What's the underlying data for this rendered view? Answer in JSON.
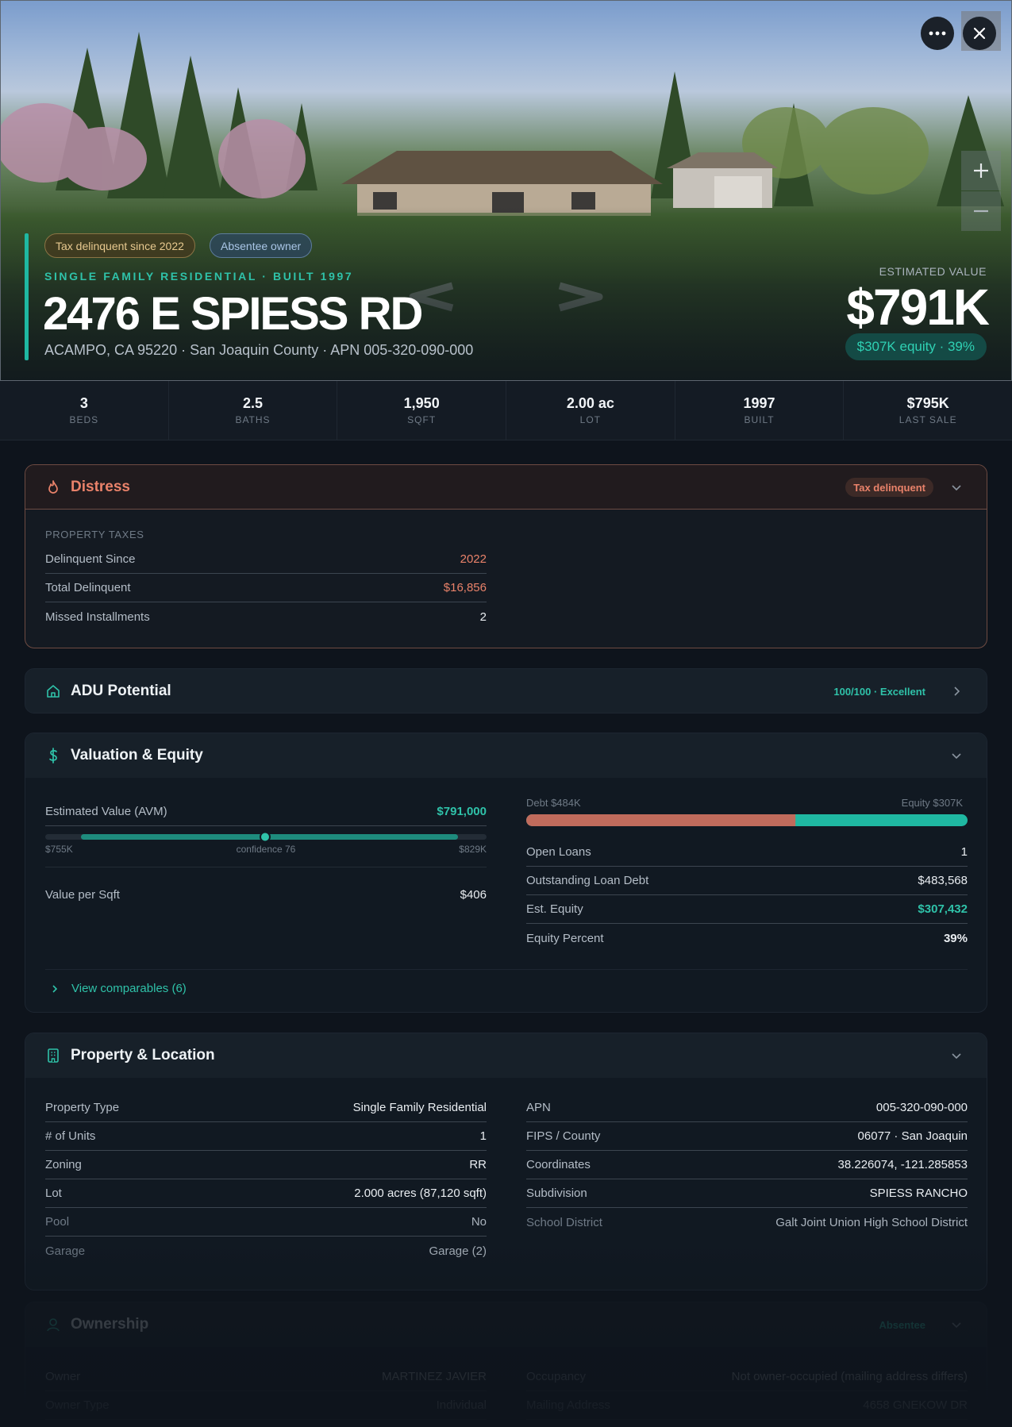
{
  "hero": {
    "chips": {
      "tax": "Tax delinquent since 2022",
      "absentee": "Absentee owner"
    },
    "eyebrow": "SINGLE FAMILY RESIDENTIAL · BUILT 1997",
    "address": "2476 E SPIESS RD",
    "subaddress": "ACAMPO, CA 95220 · San Joaquin County · APN 005-320-090-000",
    "estimated_label": "ESTIMATED VALUE",
    "estimated_value": "$791K",
    "equity_pill": "$307K equity · 39%"
  },
  "controls": {
    "more_icon": "more-horizontal-icon",
    "close_icon": "close-icon",
    "zoom_in_icon": "plus-icon",
    "zoom_out_icon": "minus-icon"
  },
  "stats": [
    {
      "value": "3",
      "label": "BEDS"
    },
    {
      "value": "2.5",
      "label": "BATHS"
    },
    {
      "value": "1,950",
      "label": "SQFT"
    },
    {
      "value": "2.00 ac",
      "label": "LOT"
    },
    {
      "value": "1997",
      "label": "BUILT"
    },
    {
      "value": "$795K",
      "label": "LAST SALE"
    }
  ],
  "distress": {
    "title": "Distress",
    "badge": "Tax delinquent",
    "section": "PROPERTY TAXES",
    "rows": [
      {
        "k": "Delinquent Since",
        "v": "2022"
      },
      {
        "k": "Total Delinquent",
        "v": "$16,856"
      },
      {
        "k": "Missed Installments",
        "v": "2"
      }
    ],
    "colors": {
      "accent": "#e9826a"
    }
  },
  "adu": {
    "title": "ADU Potential",
    "score": "100/100 · Excellent"
  },
  "valuation": {
    "title": "Valuation & Equity",
    "avm_label": "Estimated Value (AVM)",
    "avm_value": "$791,000",
    "range_low": "$755K",
    "confidence": "confidence 76",
    "range_high": "$829K",
    "value_per_sqft_label": "Value per Sqft",
    "value_per_sqft": "$406",
    "debt_label": "Debt $484K",
    "equity_label": "Equity $307K",
    "debt_fraction": 0.61,
    "rows": [
      {
        "k": "Open Loans",
        "v": "1"
      },
      {
        "k": "Outstanding Loan Debt",
        "v": "$483,568"
      },
      {
        "k": "Est. Equity",
        "v": "$307,432"
      },
      {
        "k": "Equity Percent",
        "v": "39%"
      }
    ],
    "comparables_link": "View comparables (6)"
  },
  "property": {
    "title": "Property & Location",
    "left": [
      {
        "k": "Property Type",
        "v": "Single Family Residential"
      },
      {
        "k": "# of Units",
        "v": "1"
      },
      {
        "k": "Zoning",
        "v": "RR"
      },
      {
        "k": "Lot",
        "v": "2.000 acres (87,120 sqft)"
      },
      {
        "k": "Pool",
        "v": "No"
      },
      {
        "k": "Garage",
        "v": "Garage (2)"
      }
    ],
    "right": [
      {
        "k": "APN",
        "v": "005-320-090-000"
      },
      {
        "k": "FIPS / County",
        "v": "06077 · San Joaquin"
      },
      {
        "k": "Coordinates",
        "v": "38.226074, -121.285853"
      },
      {
        "k": "Subdivision",
        "v": "SPIESS RANCHO"
      },
      {
        "k": "School District",
        "v": "Galt Joint Union High School District"
      }
    ]
  },
  "ownership": {
    "title": "Ownership",
    "badge": "Absentee",
    "left": [
      {
        "k": "Owner",
        "v": "MARTINEZ JAVIER"
      },
      {
        "k": "Owner Type",
        "v": "Individual"
      }
    ],
    "right": [
      {
        "k": "Occupancy",
        "v": "Not owner-occupied (mailing address differs)"
      },
      {
        "k": "Mailing Address",
        "v": "4658 GNEKOW DR"
      }
    ]
  }
}
